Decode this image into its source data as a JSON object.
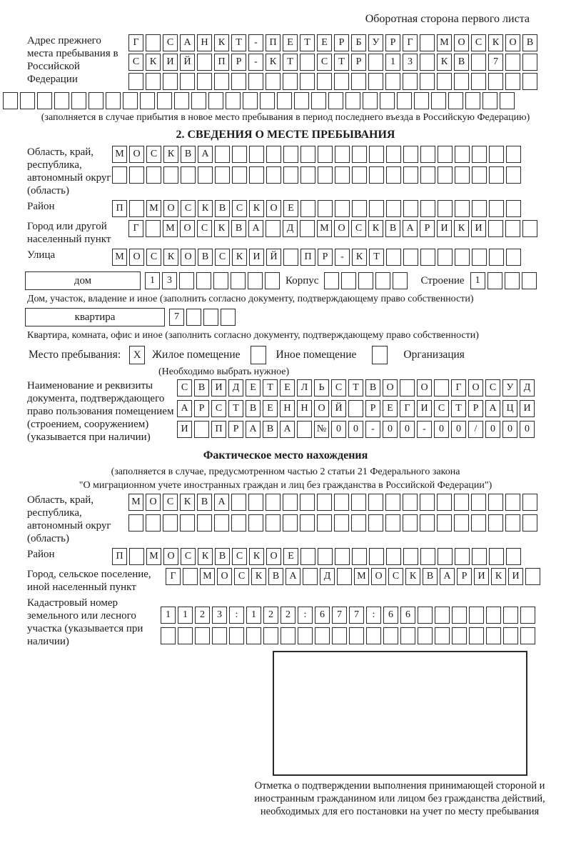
{
  "page": {
    "header_note": "Оборотная сторона первого листа"
  },
  "prev_address": {
    "label": "Адрес прежнего места пребывания в Российской Федерации",
    "rows": [
      [
        "Г",
        "",
        "С",
        "А",
        "Н",
        "К",
        "Т",
        "-",
        "П",
        "Е",
        "Т",
        "Е",
        "Р",
        "Б",
        "У",
        "Р",
        "Г",
        "",
        "М",
        "О",
        "С",
        "К",
        "О",
        "В"
      ],
      [
        "С",
        "К",
        "И",
        "Й",
        "",
        "П",
        "Р",
        "-",
        "К",
        "Т",
        "",
        "С",
        "Т",
        "Р",
        "",
        "1",
        "3",
        "",
        "К",
        "В",
        "",
        "7",
        "",
        ""
      ],
      [
        "",
        "",
        "",
        "",
        "",
        "",
        "",
        "",
        "",
        "",
        "",
        "",
        "",
        "",
        "",
        "",
        "",
        "",
        "",
        "",
        "",
        "",
        "",
        ""
      ]
    ],
    "full_row": [
      "",
      "",
      "",
      "",
      "",
      "",
      "",
      "",
      "",
      "",
      "",
      "",
      "",
      "",
      "",
      "",
      "",
      "",
      "",
      "",
      "",
      "",
      "",
      "",
      "",
      "",
      "",
      "",
      "",
      ""
    ],
    "caption": "(заполняется в случае прибытия в новое место пребывания в период последнего въезда в Российскую Федерацию)"
  },
  "section2": {
    "title": "2. СВЕДЕНИЯ О МЕСТЕ ПРЕБЫВАНИЯ",
    "region": {
      "label": "Область, край, республика, автономный округ (область)",
      "rows": [
        [
          "М",
          "О",
          "С",
          "К",
          "В",
          "А",
          "",
          "",
          "",
          "",
          "",
          "",
          "",
          "",
          "",
          "",
          "",
          "",
          "",
          "",
          "",
          "",
          "",
          ""
        ],
        [
          "",
          "",
          "",
          "",
          "",
          "",
          "",
          "",
          "",
          "",
          "",
          "",
          "",
          "",
          "",
          "",
          "",
          "",
          "",
          "",
          "",
          "",
          "",
          ""
        ]
      ]
    },
    "district": {
      "label": "Район",
      "row": [
        "П",
        "",
        "М",
        "О",
        "С",
        "К",
        "В",
        "С",
        "К",
        "О",
        "Е",
        "",
        "",
        "",
        "",
        "",
        "",
        "",
        "",
        "",
        "",
        "",
        "",
        ""
      ]
    },
    "city": {
      "label": "Город или другой населенный пункт",
      "row": [
        "Г",
        "",
        "М",
        "О",
        "С",
        "К",
        "В",
        "А",
        "",
        "Д",
        "",
        "М",
        "О",
        "С",
        "К",
        "В",
        "А",
        "Р",
        "И",
        "К",
        "И",
        "",
        "",
        ""
      ]
    },
    "street": {
      "label": "Улица",
      "row": [
        "М",
        "О",
        "С",
        "К",
        "О",
        "В",
        "С",
        "К",
        "И",
        "Й",
        "",
        "П",
        "Р",
        "-",
        "К",
        "Т",
        "",
        "",
        "",
        "",
        "",
        "",
        "",
        ""
      ]
    },
    "house": {
      "box_label": "дом",
      "cells": [
        "1",
        "3",
        "",
        "",
        "",
        "",
        "",
        ""
      ],
      "korpus_label": "Корпус",
      "korpus_cells": [
        "",
        "",
        "",
        "",
        ""
      ],
      "stroenie_label": "Строение",
      "stroenie_cells": [
        "1",
        "",
        "",
        ""
      ],
      "caption": "Дом, участок, владение и иное (заполнить согласно документу, подтверждающему право собственности)"
    },
    "apartment": {
      "box_label": "квартира",
      "cells": [
        "7",
        "",
        "",
        ""
      ],
      "caption": "Квартира, комната, офис и иное (заполнить согласно документу, подтверждающему право собственности)"
    },
    "stay_type": {
      "label": "Место пребывания:",
      "options": [
        {
          "label": "Жилое помещение",
          "checked": "X"
        },
        {
          "label": "Иное помещение",
          "checked": ""
        },
        {
          "label": "Организация",
          "checked": ""
        }
      ],
      "caption": "(Необходимо выбрать нужное)"
    },
    "document": {
      "label": "Наименование и реквизиты документа, подтверждающего право пользования помещением (строением, сооружением) (указывается при наличии)",
      "rows": [
        [
          "С",
          "В",
          "И",
          "Д",
          "Е",
          "Т",
          "Е",
          "Л",
          "Ь",
          "С",
          "Т",
          "В",
          "О",
          "",
          "О",
          "",
          "Г",
          "О",
          "С",
          "У",
          "Д"
        ],
        [
          "А",
          "Р",
          "С",
          "Т",
          "В",
          "Е",
          "Н",
          "Н",
          "О",
          "Й",
          "",
          "Р",
          "Е",
          "Г",
          "И",
          "С",
          "Т",
          "Р",
          "А",
          "Ц",
          "И"
        ],
        [
          "И",
          "",
          "П",
          "Р",
          "А",
          "В",
          "А",
          "",
          "№",
          "0",
          "0",
          "-",
          "0",
          "0",
          "-",
          "0",
          "0",
          "/",
          "0",
          "0",
          "0"
        ]
      ]
    }
  },
  "actual_location": {
    "title": "Фактическое место нахождения",
    "caption_line1": "(заполняется в случае, предусмотренном частью 2 статьи 21 Федерального закона",
    "caption_line2": "\"О миграционном учете иностранных граждан и лиц без гражданства в Российской Федерации\")",
    "region": {
      "label": "Область, край, республика, автономный округ (область)",
      "rows": [
        [
          "М",
          "О",
          "С",
          "К",
          "В",
          "А",
          "",
          "",
          "",
          "",
          "",
          "",
          "",
          "",
          "",
          "",
          "",
          "",
          "",
          "",
          "",
          "",
          "",
          ""
        ],
        [
          "",
          "",
          "",
          "",
          "",
          "",
          "",
          "",
          "",
          "",
          "",
          "",
          "",
          "",
          "",
          "",
          "",
          "",
          "",
          "",
          "",
          "",
          "",
          ""
        ]
      ]
    },
    "district": {
      "label": "Район",
      "row": [
        "П",
        "",
        "М",
        "О",
        "С",
        "К",
        "В",
        "С",
        "К",
        "О",
        "Е",
        "",
        "",
        "",
        "",
        "",
        "",
        "",
        "",
        "",
        "",
        "",
        "",
        ""
      ]
    },
    "city": {
      "label": "Город, сельское поселение, иной населенный пункт",
      "row": [
        "Г",
        "",
        "М",
        "О",
        "С",
        "К",
        "В",
        "А",
        "",
        "Д",
        "",
        "М",
        "О",
        "С",
        "К",
        "В",
        "А",
        "Р",
        "И",
        "К",
        "И",
        ""
      ]
    },
    "cadastral": {
      "label": "Кадастровый номер земельного или лесного участка (указывается при наличии)",
      "rows": [
        [
          "1",
          "1",
          "2",
          "3",
          ":",
          "1",
          "2",
          "2",
          ":",
          "6",
          "7",
          "7",
          ":",
          "6",
          "6",
          "",
          "",
          "",
          "",
          "",
          "",
          ""
        ],
        [
          "",
          "",
          "",
          "",
          "",
          "",
          "",
          "",
          "",
          "",
          "",
          "",
          "",
          "",
          "",
          "",
          "",
          "",
          "",
          "",
          "",
          ""
        ]
      ]
    },
    "stamp_caption": "Отметка о подтверждении выполнения принимающей стороной и иностранным гражданином или лицом без гражданства действий, необходимых для его постановки на учет по месту пребывания"
  }
}
